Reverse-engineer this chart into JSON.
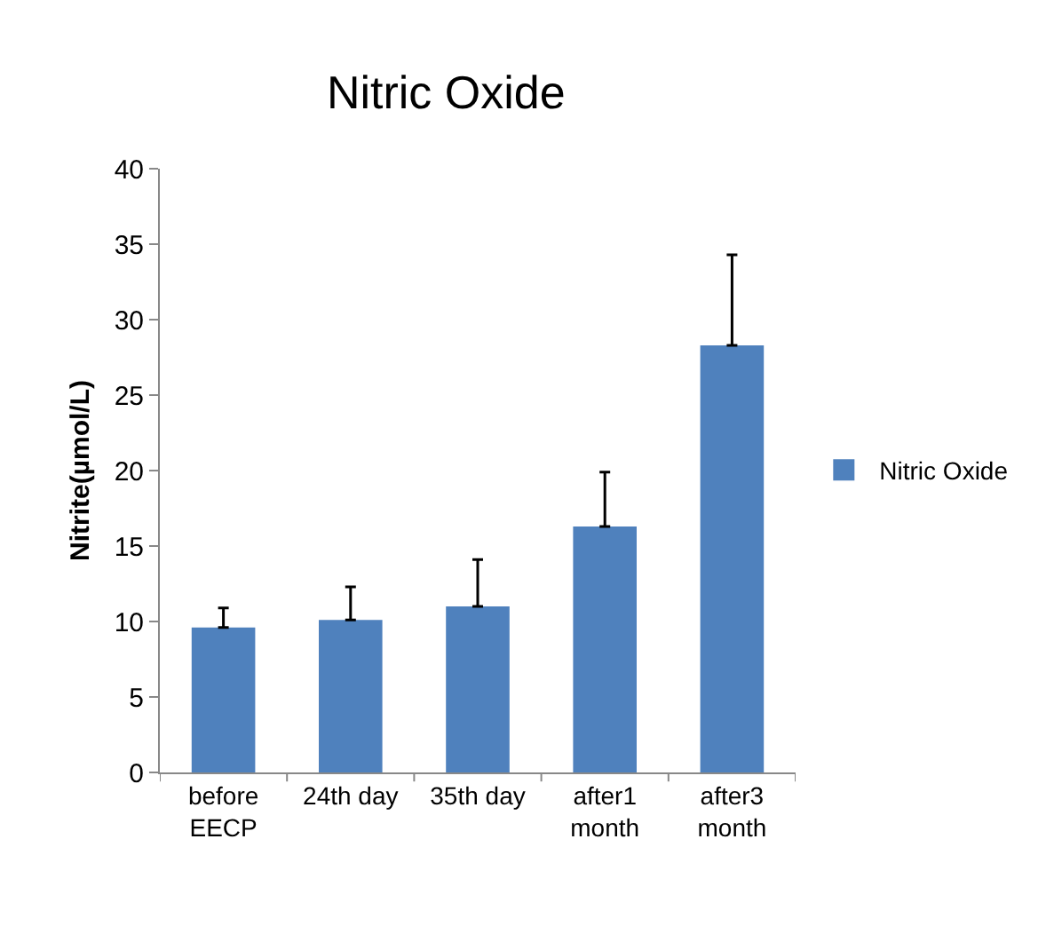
{
  "chart_data": {
    "type": "bar",
    "title": "Nitric Oxide",
    "ylabel": "Nitrite(µmol/L)",
    "categories": [
      "before EECP",
      "24th day",
      "35th day",
      "after1 month",
      "after3 month"
    ],
    "series": [
      {
        "name": "Nitric Oxide",
        "color": "#4f81bd",
        "values": [
          9.6,
          10.1,
          11.0,
          16.3,
          28.3
        ],
        "errors": [
          [
            9.6,
            10.9
          ],
          [
            10.1,
            12.3
          ],
          [
            11.0,
            14.1
          ],
          [
            16.3,
            19.9
          ],
          [
            28.3,
            34.3
          ]
        ]
      }
    ],
    "ylim": [
      0,
      40
    ],
    "yticks": [
      0,
      5,
      10,
      15,
      20,
      25,
      30,
      35,
      40
    ],
    "grid": false,
    "legend": "right"
  }
}
